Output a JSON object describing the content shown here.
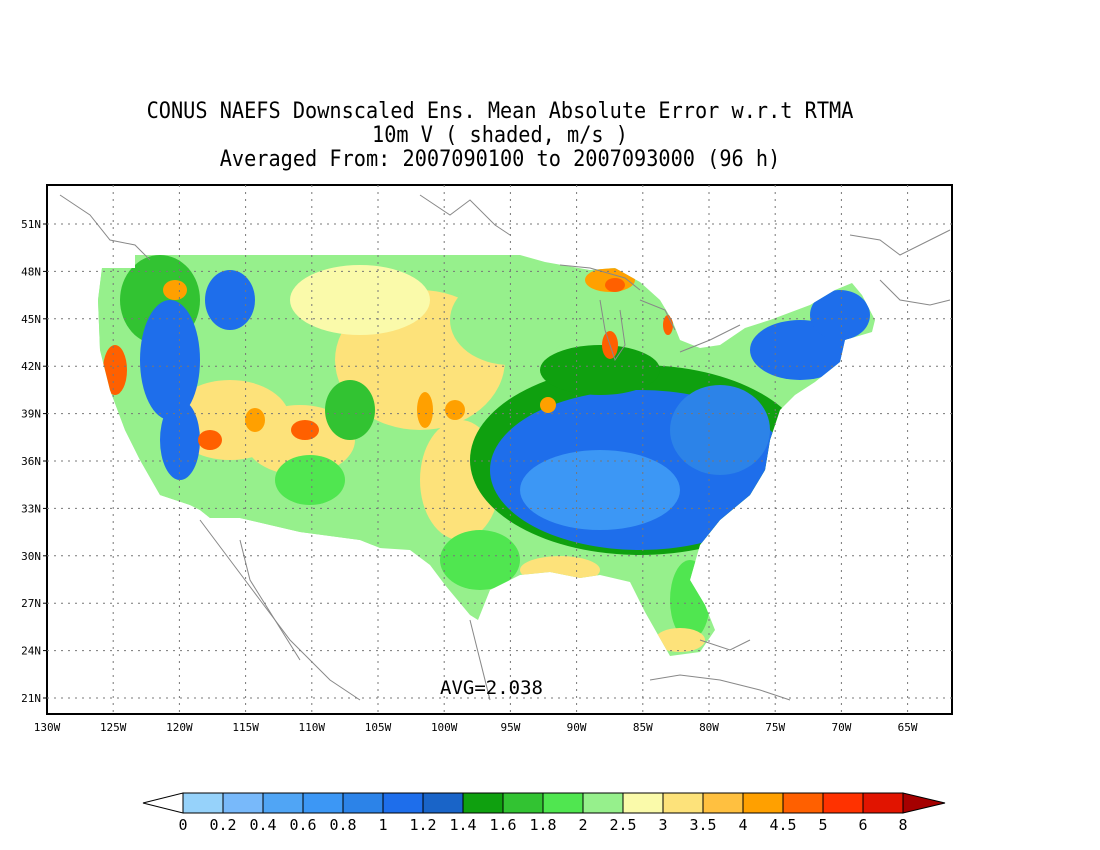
{
  "title": {
    "line1": "CONUS NAEFS Downscaled Ens. Mean Absolute Error w.r.t RTMA",
    "line2": "10m V ( shaded, m/s )",
    "line3": "Averaged From: 2007090100 to 2007093000 (96 h)"
  },
  "map": {
    "lon_labels": [
      "130W",
      "125W",
      "120W",
      "115W",
      "110W",
      "105W",
      "100W",
      "95W",
      "90W",
      "85W",
      "80W",
      "75W",
      "70W",
      "65W"
    ],
    "lat_labels": [
      "51N",
      "48N",
      "45N",
      "42N",
      "39N",
      "36N",
      "33N",
      "30N",
      "27N",
      "24N",
      "21N"
    ],
    "avg_text": "AVG=2.038",
    "grid": "dotted",
    "domain": "CONUS"
  },
  "colorbar": {
    "labels": [
      "0",
      "0.2",
      "0.4",
      "0.6",
      "0.8",
      "1",
      "1.2",
      "1.4",
      "1.6",
      "1.8",
      "2",
      "2.5",
      "3",
      "3.5",
      "4",
      "4.5",
      "5",
      "6",
      "8"
    ],
    "colors": [
      "#ffffff",
      "#96d2fa",
      "#78b9fa",
      "#50a5f5",
      "#3c97f5",
      "#2c83e8",
      "#1e6eeb",
      "#1964c8",
      "#0fa00f",
      "#32c332",
      "#50e650",
      "#96f08c",
      "#fafaaa",
      "#fde27a",
      "#ffc040",
      "#ffa000",
      "#ff6000",
      "#ff3200",
      "#e11400",
      "#a50000"
    ]
  }
}
